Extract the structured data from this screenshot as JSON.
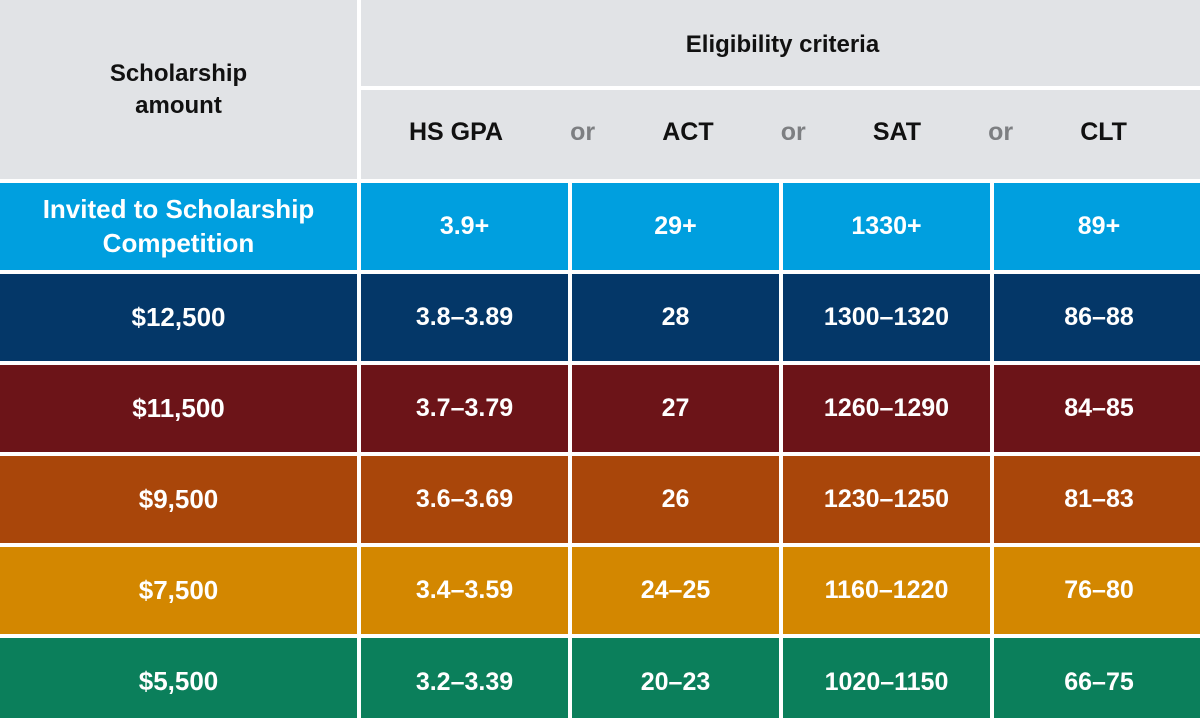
{
  "header": {
    "amount_label": "Scholarship amount",
    "criteria_label": "Eligibility criteria",
    "columns": [
      "HS GPA",
      "ACT",
      "SAT",
      "CLT"
    ],
    "separator": "or"
  },
  "rows": [
    {
      "amount": "Invited to Scholarship Competition",
      "gpa": "3.9+",
      "act": "29+",
      "sat": "1330+",
      "clt": "89+",
      "color": "#009fdf"
    },
    {
      "amount": "$12,500",
      "gpa": "3.8–3.89",
      "act": "28",
      "sat": "1300–1320",
      "clt": "86–88",
      "color": "#043768"
    },
    {
      "amount": "$11,500",
      "gpa": "3.7–3.79",
      "act": "27",
      "sat": "1260–1290",
      "clt": "84–85",
      "color": "#6c1418"
    },
    {
      "amount": "$9,500",
      "gpa": "3.6–3.69",
      "act": "26",
      "sat": "1230–1250",
      "clt": "81–83",
      "color": "#a9460a"
    },
    {
      "amount": "$7,500",
      "gpa": "3.4–3.59",
      "act": "24–25",
      "sat": "1160–1220",
      "clt": "76–80",
      "color": "#d38700"
    },
    {
      "amount": "$5,500",
      "gpa": "3.2–3.39",
      "act": "20–23",
      "sat": "1020–1150",
      "clt": "66–75",
      "color": "#0b7f5b"
    }
  ]
}
